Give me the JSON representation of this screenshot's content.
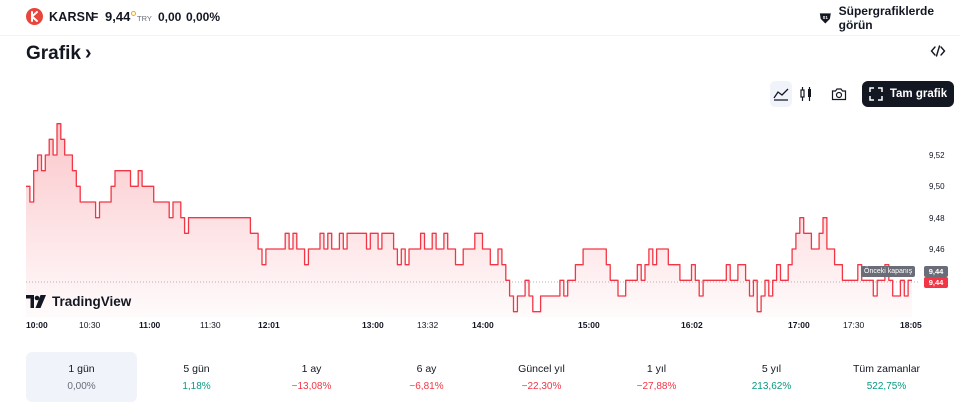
{
  "header": {
    "symbol": "KARSN",
    "separator": "=",
    "price": "9,44",
    "currency": "TRY",
    "change": "0,00",
    "change_percent": "0,00%",
    "supercharts_label": "Süpergrafiklerde görün"
  },
  "section": {
    "title": "Grafik",
    "chevron": "›",
    "full_chart_label": "Tam grafik"
  },
  "toolbar_icons": [
    "line-chart-icon",
    "candles-icon",
    "camera-icon",
    "fullscreen-icon",
    "embed-code-icon"
  ],
  "chart_data": {
    "type": "line",
    "title": "",
    "xlabel": "",
    "ylabel": "",
    "ylim": [
      9.4,
      9.57
    ],
    "y_ticks": [
      "9,52",
      "9,50",
      "9,48",
      "9,46"
    ],
    "x_ticks": [
      "10:00",
      "10:30",
      "11:00",
      "11:30",
      "12:01",
      "13:00",
      "13:32",
      "14:00",
      "15:00",
      "16:02",
      "17:00",
      "17:30",
      "18:05"
    ],
    "x_ticks_bold": [
      "10:00",
      "11:00",
      "12:01",
      "13:00",
      "14:00",
      "15:00",
      "16:02",
      "17:00",
      "18:05"
    ],
    "previous_close_label": "Önceki kapanış",
    "previous_close_value": "9,44",
    "last_value": "9,44",
    "series": [
      {
        "line_color": "#f23645",
        "values": [
          9.5,
          9.49,
          9.51,
          9.52,
          9.51,
          9.52,
          9.53,
          9.52,
          9.54,
          9.53,
          9.52,
          9.52,
          9.51,
          9.5,
          9.49,
          9.49,
          9.49,
          9.49,
          9.48,
          9.49,
          9.49,
          9.49,
          9.5,
          9.51,
          9.51,
          9.51,
          9.51,
          9.5,
          9.5,
          9.51,
          9.5,
          9.5,
          9.5,
          9.49,
          9.49,
          9.49,
          9.49,
          9.48,
          9.49,
          9.49,
          9.48,
          9.47,
          9.48,
          9.48,
          9.48,
          9.48,
          9.48,
          9.48,
          9.48,
          9.48,
          9.48,
          9.48,
          9.48,
          9.48,
          9.48,
          9.48,
          9.48,
          9.48,
          9.47,
          9.47,
          9.46,
          9.45,
          9.46,
          9.46,
          9.46,
          9.46,
          9.46,
          9.47,
          9.46,
          9.47,
          9.46,
          9.46,
          9.45,
          9.46,
          9.46,
          9.46,
          9.47,
          9.46,
          9.47,
          9.46,
          9.46,
          9.47,
          9.46,
          9.47,
          9.47,
          9.47,
          9.47,
          9.47,
          9.46,
          9.47,
          9.47,
          9.46,
          9.47,
          9.47,
          9.47,
          9.46,
          9.45,
          9.46,
          9.45,
          9.46,
          9.46,
          9.46,
          9.47,
          9.46,
          9.46,
          9.47,
          9.46,
          9.46,
          9.47,
          9.46,
          9.46,
          9.45,
          9.45,
          9.46,
          9.46,
          9.46,
          9.47,
          9.47,
          9.46,
          9.46,
          9.45,
          9.45,
          9.46,
          9.45,
          9.44,
          9.43,
          9.42,
          9.43,
          9.43,
          9.44,
          9.43,
          9.42,
          9.42,
          9.43,
          9.43,
          9.43,
          9.43,
          9.43,
          9.44,
          9.43,
          9.44,
          9.44,
          9.45,
          9.45,
          9.46,
          9.46,
          9.46,
          9.46,
          9.46,
          9.46,
          9.45,
          9.44,
          9.44,
          9.43,
          9.43,
          9.44,
          9.44,
          9.44,
          9.45,
          9.44,
          9.45,
          9.46,
          9.45,
          9.46,
          9.46,
          9.46,
          9.45,
          9.45,
          9.45,
          9.44,
          9.44,
          9.44,
          9.45,
          9.44,
          9.43,
          9.44,
          9.44,
          9.44,
          9.44,
          9.44,
          9.44,
          9.45,
          9.44,
          9.44,
          9.45,
          9.45,
          9.44,
          9.43,
          9.44,
          9.42,
          9.43,
          9.44,
          9.43,
          9.44,
          9.45,
          9.44,
          9.44,
          9.45,
          9.46,
          9.47,
          9.48,
          9.47,
          9.47,
          9.46,
          9.46,
          9.47,
          9.48,
          9.46,
          9.46,
          9.45,
          9.45,
          9.44,
          9.44,
          9.44,
          9.44,
          9.45,
          9.44,
          9.44,
          9.44,
          9.43,
          9.44,
          9.44,
          9.45,
          9.44,
          9.43,
          9.43,
          9.44,
          9.43,
          9.44,
          9.44
        ]
      }
    ]
  },
  "periods": [
    {
      "label": "1 gün",
      "value": "0,00%",
      "trend": "neutral",
      "active": true
    },
    {
      "label": "5 gün",
      "value": "1,18%",
      "trend": "pos",
      "active": false
    },
    {
      "label": "1 ay",
      "value": "−13,08%",
      "trend": "neg",
      "active": false
    },
    {
      "label": "6 ay",
      "value": "−6,81%",
      "trend": "neg",
      "active": false
    },
    {
      "label": "Güncel yıl",
      "value": "−22,30%",
      "trend": "neg",
      "active": false
    },
    {
      "label": "1 yıl",
      "value": "−27,88%",
      "trend": "neg",
      "active": false
    },
    {
      "label": "5 yıl",
      "value": "213,62%",
      "trend": "pos",
      "active": false
    },
    {
      "label": "Tüm zamanlar",
      "value": "522,75%",
      "trend": "pos",
      "active": false
    }
  ],
  "branding": {
    "tradingview_label": "TradingView"
  }
}
